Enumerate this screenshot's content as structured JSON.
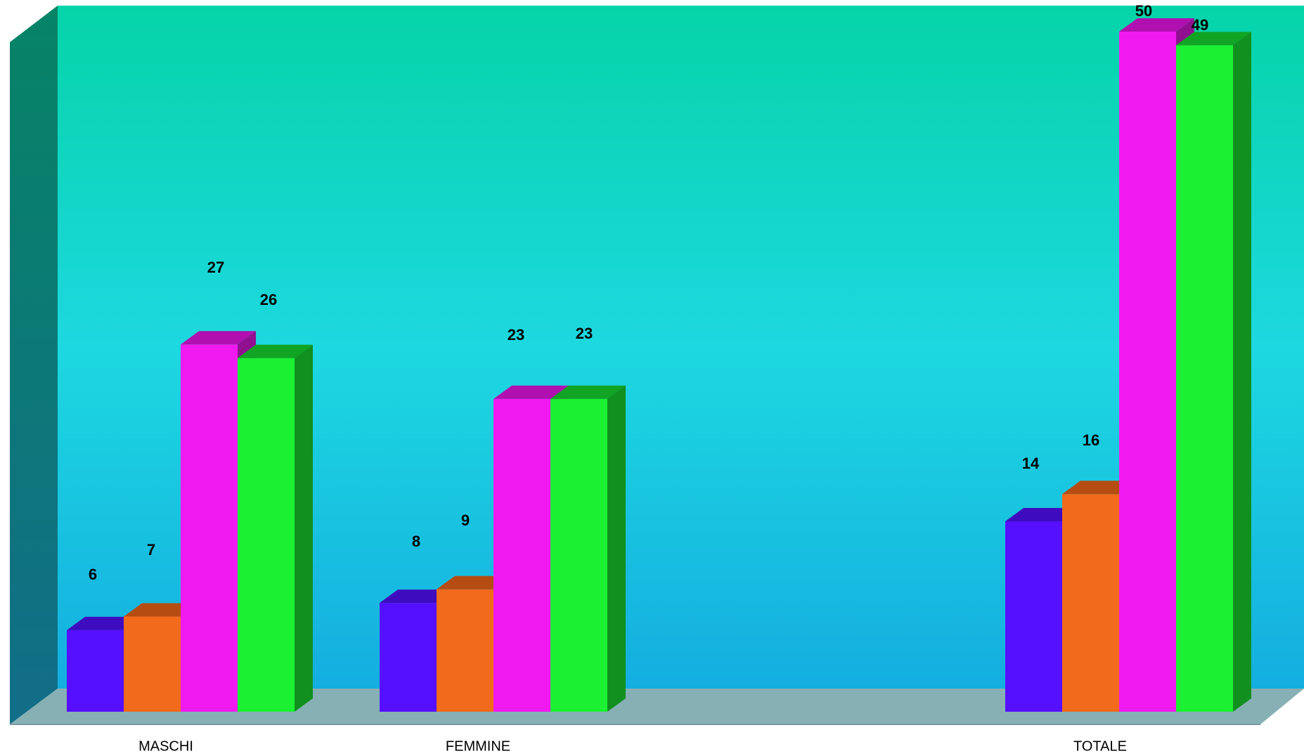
{
  "chart_data": {
    "type": "bar",
    "style": "3d-clustered-column",
    "categories": [
      "MASCHI",
      "FEMMINE",
      "",
      "TOTALE"
    ],
    "series": [
      {
        "values": [
          6,
          8,
          null,
          14
        ],
        "color": "#5510ff",
        "top_color": "#3e0bbf"
      },
      {
        "values": [
          7,
          9,
          null,
          16
        ],
        "color": "#f26a1c",
        "top_color": "#b54d12"
      },
      {
        "values": [
          27,
          23,
          null,
          50
        ],
        "color": "#f01af0",
        "top_color": "#b010b0"
      },
      {
        "values": [
          26,
          23,
          null,
          49
        ],
        "color": "#1cf033",
        "top_color": "#12a424"
      }
    ],
    "data_labels": [
      [
        "6",
        "8",
        "",
        "14"
      ],
      [
        "7",
        "9",
        "",
        "16"
      ],
      [
        "27",
        "23",
        "",
        "50"
      ],
      [
        "26",
        "23",
        "",
        "49"
      ]
    ],
    "ylim": [
      0,
      50
    ],
    "grid": false,
    "legend": "none",
    "title": "",
    "xlabel": "",
    "ylabel": "",
    "background": {
      "wall_top": "#05d4a8",
      "wall_middle": "#1dd8e0",
      "wall_bottom": "#14aee0",
      "side_wall_top": "#068466",
      "side_wall_bottom": "#126d88",
      "floor": "#86b0b4"
    }
  }
}
